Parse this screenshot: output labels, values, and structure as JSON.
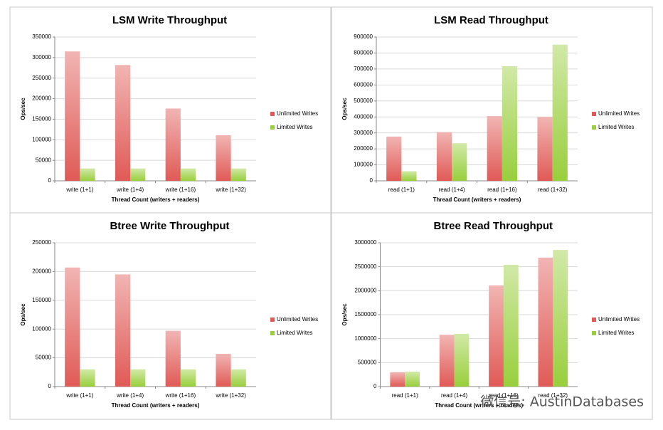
{
  "chart_data": [
    {
      "type": "bar",
      "title": "LSM Write Throughput",
      "x_label": "Thread Count (writers + readers)",
      "y_label": "Ops/sec",
      "categories": [
        "write (1+1)",
        "write (1+4)",
        "write (1+16)",
        "write (1+32)"
      ],
      "series": [
        {
          "name": "Unlimited Writes",
          "color": "#e05a56",
          "values": [
            315000,
            282000,
            176000,
            111000
          ]
        },
        {
          "name": "Limited Writes",
          "color": "#98cf3c",
          "values": [
            30000,
            30000,
            30000,
            30000
          ]
        }
      ],
      "ylim": [
        0,
        350000
      ],
      "yticks": [
        0,
        50000,
        100000,
        150000,
        200000,
        250000,
        300000,
        350000
      ],
      "legend": "right"
    },
    {
      "type": "bar",
      "title": "LSM Read Throughput",
      "x_label": "Thread Count (writers + readers)",
      "y_label": "Ops/sec",
      "categories": [
        "read (1+1)",
        "read (1+4)",
        "read (1+16)",
        "read (1+32)"
      ],
      "series": [
        {
          "name": "Unlimited Writes",
          "color": "#e05a56",
          "values": [
            277000,
            305000,
            405000,
            400000
          ]
        },
        {
          "name": "Limited Writes",
          "color": "#98cf3c",
          "values": [
            60000,
            235000,
            717000,
            852000
          ]
        }
      ],
      "ylim": [
        0,
        900000
      ],
      "yticks": [
        0,
        100000,
        200000,
        300000,
        400000,
        500000,
        600000,
        700000,
        800000,
        900000
      ],
      "legend": "right"
    },
    {
      "type": "bar",
      "title": "Btree Write Throughput",
      "x_label": "Thread Count (writers + readers)",
      "y_label": "Ops/sec",
      "categories": [
        "write (1+1)",
        "write (1+4)",
        "write (1+16)",
        "write (1+32)"
      ],
      "series": [
        {
          "name": "Unlimited Writes",
          "color": "#e05a56",
          "values": [
            207000,
            195000,
            97000,
            57000
          ]
        },
        {
          "name": "Limited Writes",
          "color": "#98cf3c",
          "values": [
            30000,
            30000,
            30000,
            30000
          ]
        }
      ],
      "ylim": [
        0,
        250000
      ],
      "yticks": [
        0,
        50000,
        100000,
        150000,
        200000,
        250000
      ],
      "legend": "right"
    },
    {
      "type": "bar",
      "title": "Btree Read Throughput",
      "x_label": "Thread Count (writers + readers)",
      "y_label": "Ops/sec",
      "categories": [
        "read (1+1)",
        "read (1+4)",
        "read (1+16)",
        "read (1+32)"
      ],
      "series": [
        {
          "name": "Unlimited Writes",
          "color": "#e05a56",
          "values": [
            300000,
            1080000,
            2110000,
            2690000
          ]
        },
        {
          "name": "Limited Writes",
          "color": "#98cf3c",
          "values": [
            310000,
            1100000,
            2540000,
            2850000
          ]
        }
      ],
      "ylim": [
        0,
        3000000
      ],
      "yticks": [
        0,
        500000,
        1000000,
        1500000,
        2000000,
        2500000,
        3000000
      ],
      "legend": "right"
    }
  ],
  "watermark": "微信号: AustinDatabases"
}
